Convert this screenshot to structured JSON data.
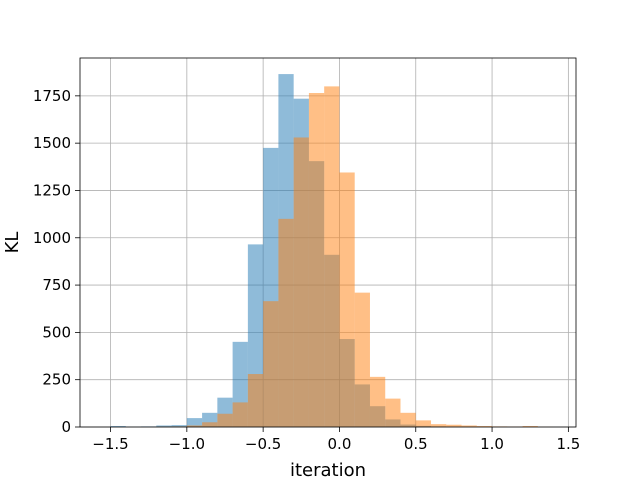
{
  "chart_data": {
    "type": "histogram",
    "xlabel": "iteration",
    "ylabel": "KL",
    "xlim": [
      -1.7,
      1.55
    ],
    "ylim": [
      0,
      1950
    ],
    "x_ticks": [
      -1.5,
      -1.0,
      -0.5,
      0.0,
      0.5,
      1.0,
      1.5
    ],
    "x_tick_labels": [
      "−1.5",
      "−1.0",
      "−0.5",
      "0.0",
      "0.5",
      "1.0",
      "1.5"
    ],
    "y_ticks": [
      0,
      250,
      500,
      750,
      1000,
      1250,
      1500,
      1750
    ],
    "y_tick_labels": [
      "0",
      "250",
      "500",
      "750",
      "1000",
      "1250",
      "1500",
      "1750"
    ],
    "grid": true,
    "legend": false,
    "series": [
      {
        "color": "#1f77b4",
        "alpha": 0.5,
        "bin_edges": [
          -1.5,
          -1.4,
          -1.3,
          -1.2,
          -1.1,
          -1.0,
          -0.9,
          -0.8,
          -0.7,
          -0.6,
          -0.5,
          -0.4,
          -0.3,
          -0.2,
          -0.1,
          0.0,
          0.1,
          0.2,
          0.3,
          0.4,
          0.5,
          0.6,
          0.7
        ],
        "counts": [
          5,
          1,
          3,
          8,
          10,
          47,
          75,
          155,
          450,
          965,
          1475,
          1865,
          1735,
          1405,
          910,
          465,
          225,
          110,
          40,
          13,
          6,
          3
        ]
      },
      {
        "color": "#ff7f0e",
        "alpha": 0.5,
        "bin_edges": [
          -1.2,
          -1.1,
          -1.0,
          -0.9,
          -0.8,
          -0.7,
          -0.6,
          -0.5,
          -0.4,
          -0.3,
          -0.2,
          -0.1,
          0.0,
          0.1,
          0.2,
          0.3,
          0.4,
          0.5,
          0.6,
          0.7,
          0.8,
          0.9,
          1.0,
          1.1,
          1.2,
          1.3,
          1.4
        ],
        "counts": [
          2,
          3,
          8,
          25,
          70,
          130,
          280,
          665,
          1100,
          1530,
          1765,
          1800,
          1345,
          710,
          265,
          150,
          75,
          35,
          15,
          12,
          8,
          5,
          3,
          2,
          5,
          1
        ]
      }
    ]
  }
}
